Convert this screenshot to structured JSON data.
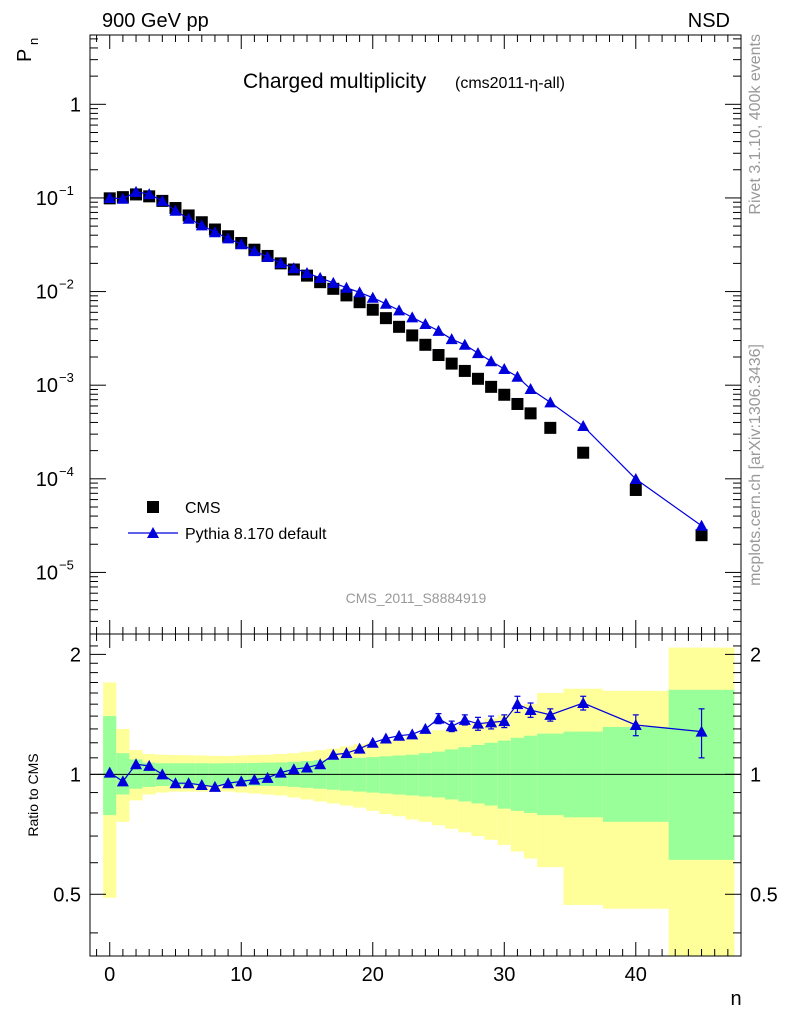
{
  "header": {
    "left_label": "900 GeV pp",
    "right_label": "NSD"
  },
  "side_labels": {
    "rivet": "Rivet 3.1.10,  400k events",
    "mcplots": "mcplots.cern.ch [arXiv:1306.3436]"
  },
  "chart_data": [
    {
      "type": "scatter",
      "panel": "main",
      "title": "Charged multiplicity",
      "subtitle": "(cms2011-η-all)",
      "watermark": "CMS_2011_S8884919",
      "xlabel": "n",
      "ylabel": "P",
      "ylabel_sub": "n",
      "yscale": "log",
      "xlim": [
        -1.5,
        48
      ],
      "ylim": [
        2.2e-06,
        5.5
      ],
      "yticks": [
        {
          "value": 1e-05,
          "base": "10",
          "exp": "−5"
        },
        {
          "value": 0.0001,
          "base": "10",
          "exp": "−4"
        },
        {
          "value": 0.001,
          "base": "10",
          "exp": "−3"
        },
        {
          "value": 0.01,
          "base": "10",
          "exp": "−2"
        },
        {
          "value": 0.1,
          "base": "10",
          "exp": "−1"
        },
        {
          "value": 1,
          "base": "1",
          "exp": ""
        }
      ],
      "legend_position": "bottom-left",
      "series": [
        {
          "name": "CMS",
          "marker": "square",
          "color": "#000000",
          "x": [
            0,
            1,
            2,
            3,
            4,
            5,
            6,
            7,
            8,
            9,
            10,
            11,
            12,
            13,
            14,
            15,
            16,
            17,
            18,
            19,
            20,
            21,
            22,
            23,
            24,
            25,
            26,
            27,
            28,
            29,
            30,
            31,
            32,
            33.5,
            36,
            40,
            45
          ],
          "values": [
            0.099,
            0.102,
            0.109,
            0.104,
            0.093,
            0.078,
            0.065,
            0.055,
            0.046,
            0.039,
            0.033,
            0.028,
            0.024,
            0.02,
            0.0172,
            0.0148,
            0.0126,
            0.0107,
            0.0091,
            0.0077,
            0.0064,
            0.0052,
            0.0042,
            0.0034,
            0.0027,
            0.0021,
            0.0017,
            0.00142,
            0.00117,
            0.00096,
            0.00079,
            0.00063,
            0.0005,
            0.00035,
            0.00019,
            7.6e-05,
            2.5e-05
          ]
        },
        {
          "name": "Pythia 8.170 default",
          "marker": "triangle",
          "color": "#0000dd",
          "x": [
            0,
            1,
            2,
            3,
            4,
            5,
            6,
            7,
            8,
            9,
            10,
            11,
            12,
            13,
            14,
            15,
            16,
            17,
            18,
            19,
            20,
            21,
            22,
            23,
            24,
            25,
            26,
            27,
            28,
            29,
            30,
            31,
            32,
            33.5,
            36,
            40,
            45
          ],
          "values": [
            0.1,
            0.098,
            0.116,
            0.11,
            0.093,
            0.073,
            0.06,
            0.051,
            0.043,
            0.037,
            0.032,
            0.027,
            0.0235,
            0.0202,
            0.0178,
            0.0158,
            0.014,
            0.0124,
            0.011,
            0.0098,
            0.0086,
            0.0074,
            0.0063,
            0.0053,
            0.0045,
            0.0038,
            0.0031,
            0.0027,
            0.0022,
            0.0018,
            0.00149,
            0.00123,
            0.00091,
            0.000655,
            0.000366,
            9.95e-05,
            3.15e-05
          ]
        }
      ]
    },
    {
      "type": "scatter",
      "panel": "ratio",
      "ylabel": "Ratio to CMS",
      "xlabel": "n",
      "xlim": [
        -1.5,
        48
      ],
      "ylim": [
        0.35,
        2.25
      ],
      "yscale": "log",
      "xticks": [
        0,
        10,
        20,
        30,
        40
      ],
      "xtick_labels": [
        "0",
        "10",
        "20",
        "30",
        "40"
      ],
      "yticks": [
        0.5,
        1,
        2
      ],
      "ytick_labels": [
        "0.5",
        "1",
        "2"
      ],
      "band_colors": {
        "inner": "#99ff99",
        "outer": "#ffff99"
      },
      "bands": {
        "edges": [
          -0.5,
          0.5,
          1.5,
          2.5,
          3.5,
          4.5,
          5.5,
          6.5,
          7.5,
          8.5,
          9.5,
          10.5,
          11.5,
          12.5,
          13.5,
          14.5,
          15.5,
          16.5,
          17.5,
          18.5,
          19.5,
          20.5,
          21.5,
          22.5,
          23.5,
          24.5,
          25.5,
          26.5,
          27.5,
          28.5,
          29.5,
          30.5,
          31.5,
          32.5,
          34.5,
          37.5,
          42.5,
          47.5
        ],
        "inner_lo": [
          0.79,
          0.89,
          0.92,
          0.93,
          0.935,
          0.937,
          0.937,
          0.937,
          0.938,
          0.937,
          0.937,
          0.936,
          0.935,
          0.934,
          0.93,
          0.925,
          0.92,
          0.915,
          0.91,
          0.905,
          0.9,
          0.895,
          0.89,
          0.885,
          0.88,
          0.875,
          0.865,
          0.855,
          0.845,
          0.835,
          0.82,
          0.81,
          0.8,
          0.79,
          0.78,
          0.76,
          0.61
        ],
        "inner_hi": [
          1.4,
          1.13,
          1.09,
          1.07,
          1.066,
          1.066,
          1.066,
          1.066,
          1.065,
          1.066,
          1.067,
          1.068,
          1.07,
          1.071,
          1.075,
          1.08,
          1.085,
          1.09,
          1.095,
          1.1,
          1.105,
          1.11,
          1.115,
          1.12,
          1.13,
          1.14,
          1.155,
          1.17,
          1.185,
          1.2,
          1.215,
          1.235,
          1.25,
          1.265,
          1.28,
          1.315,
          1.63
        ],
        "outer_lo": [
          0.49,
          0.76,
          0.86,
          0.89,
          0.9,
          0.905,
          0.905,
          0.905,
          0.905,
          0.905,
          0.9,
          0.895,
          0.89,
          0.885,
          0.875,
          0.865,
          0.855,
          0.845,
          0.835,
          0.825,
          0.81,
          0.795,
          0.785,
          0.77,
          0.76,
          0.745,
          0.73,
          0.715,
          0.7,
          0.685,
          0.665,
          0.64,
          0.615,
          0.585,
          0.47,
          0.46,
          0.3
        ],
        "outer_hi": [
          1.7,
          1.3,
          1.15,
          1.125,
          1.12,
          1.118,
          1.117,
          1.115,
          1.113,
          1.112,
          1.115,
          1.118,
          1.12,
          1.125,
          1.13,
          1.14,
          1.15,
          1.16,
          1.175,
          1.19,
          1.2,
          1.215,
          1.23,
          1.25,
          1.27,
          1.29,
          1.31,
          1.33,
          1.35,
          1.38,
          1.41,
          1.45,
          1.5,
          1.6,
          1.64,
          1.62,
          2.08
        ]
      },
      "series": [
        {
          "name": "Pythia 8.170 default / CMS",
          "marker": "triangle",
          "color": "#0000dd",
          "x": [
            0,
            1,
            2,
            3,
            4,
            5,
            6,
            7,
            8,
            9,
            10,
            11,
            12,
            13,
            14,
            15,
            16,
            17,
            18,
            19,
            20,
            21,
            22,
            23,
            24,
            25,
            26,
            27,
            28,
            29,
            30,
            31,
            32,
            33.5,
            36,
            40,
            45
          ],
          "values": [
            1.01,
            0.96,
            1.06,
            1.05,
            1.0,
            0.95,
            0.95,
            0.94,
            0.93,
            0.95,
            0.96,
            0.97,
            0.98,
            1.01,
            1.03,
            1.04,
            1.06,
            1.12,
            1.13,
            1.16,
            1.2,
            1.23,
            1.25,
            1.26,
            1.3,
            1.38,
            1.32,
            1.37,
            1.34,
            1.35,
            1.36,
            1.5,
            1.45,
            1.41,
            1.51,
            1.33,
            1.28
          ],
          "err_lo": [
            0,
            0,
            0,
            0,
            0,
            0,
            0,
            0,
            0,
            0,
            0,
            0,
            0,
            0,
            0,
            0,
            0,
            0,
            0,
            0,
            0,
            0,
            0,
            0,
            0,
            0.04,
            0.04,
            0.04,
            0.05,
            0.05,
            0.05,
            0.07,
            0.06,
            0.05,
            0.06,
            0.08,
            0.18
          ],
          "err_hi": [
            0,
            0,
            0,
            0,
            0,
            0,
            0,
            0,
            0,
            0,
            0,
            0,
            0,
            0,
            0,
            0,
            0,
            0,
            0,
            0,
            0,
            0,
            0,
            0,
            0,
            0.04,
            0.04,
            0.04,
            0.05,
            0.05,
            0.05,
            0.07,
            0.06,
            0.05,
            0.06,
            0.08,
            0.18
          ]
        }
      ]
    }
  ]
}
